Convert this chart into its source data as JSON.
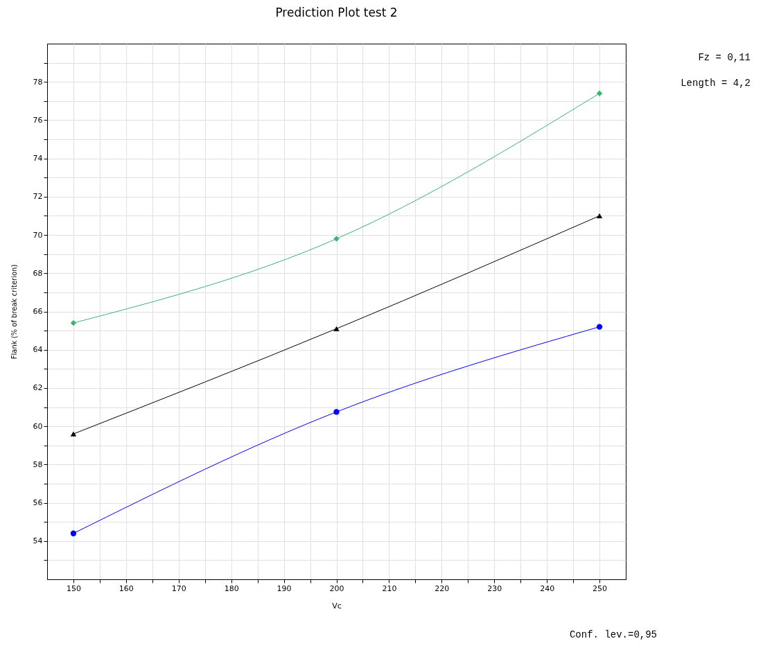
{
  "chart_data": {
    "type": "line",
    "title": "Prediction Plot test 2",
    "xlabel": "Vc",
    "ylabel": "Flank (% of break criterion)",
    "x": [
      150,
      200,
      250
    ],
    "series": [
      {
        "color": "#3cb371",
        "marker": "diamond",
        "values": [
          65.4,
          69.8,
          77.4
        ]
      },
      {
        "color": "#000000",
        "marker": "triangle",
        "values": [
          59.6,
          65.1,
          71.0
        ]
      },
      {
        "color": "#0000ff",
        "marker": "circle",
        "values": [
          54.4,
          60.75,
          65.2
        ]
      }
    ],
    "xlim": [
      145,
      255
    ],
    "xticks": [
      150,
      {
        "value": 155,
        "label": null
      },
      160,
      {
        "value": 165,
        "label": null
      },
      170,
      {
        "value": 175,
        "label": null
      },
      180,
      {
        "value": 185,
        "label": null
      },
      190,
      {
        "value": 195,
        "label": null
      },
      200,
      {
        "value": 205,
        "label": null
      },
      210,
      {
        "value": 215,
        "label": null
      },
      220,
      {
        "value": 225,
        "label": null
      },
      230,
      {
        "value": 235,
        "label": null
      },
      240,
      {
        "value": 245,
        "label": null
      },
      250
    ],
    "ylim": [
      52,
      80
    ],
    "yticks": [
      {
        "value": 53,
        "label": null
      },
      54,
      {
        "value": 55,
        "label": null
      },
      56,
      {
        "value": 57,
        "label": null
      },
      58,
      {
        "value": 59,
        "label": null
      },
      60,
      {
        "value": 61,
        "label": null
      },
      62,
      {
        "value": 63,
        "label": null
      },
      64,
      {
        "value": 65,
        "label": null
      },
      66,
      {
        "value": 67,
        "label": null
      },
      68,
      {
        "value": 69,
        "label": null
      },
      70,
      {
        "value": 71,
        "label": null
      },
      72,
      {
        "value": 73,
        "label": null
      },
      74,
      {
        "value": 75,
        "label": null
      },
      76,
      {
        "value": 77,
        "label": null
      },
      78,
      {
        "value": 79,
        "label": null
      }
    ],
    "grid": true,
    "annotations": [
      "Fz = 0,11",
      "Length = 4,2",
      "Conf. lev.=0,95"
    ]
  }
}
